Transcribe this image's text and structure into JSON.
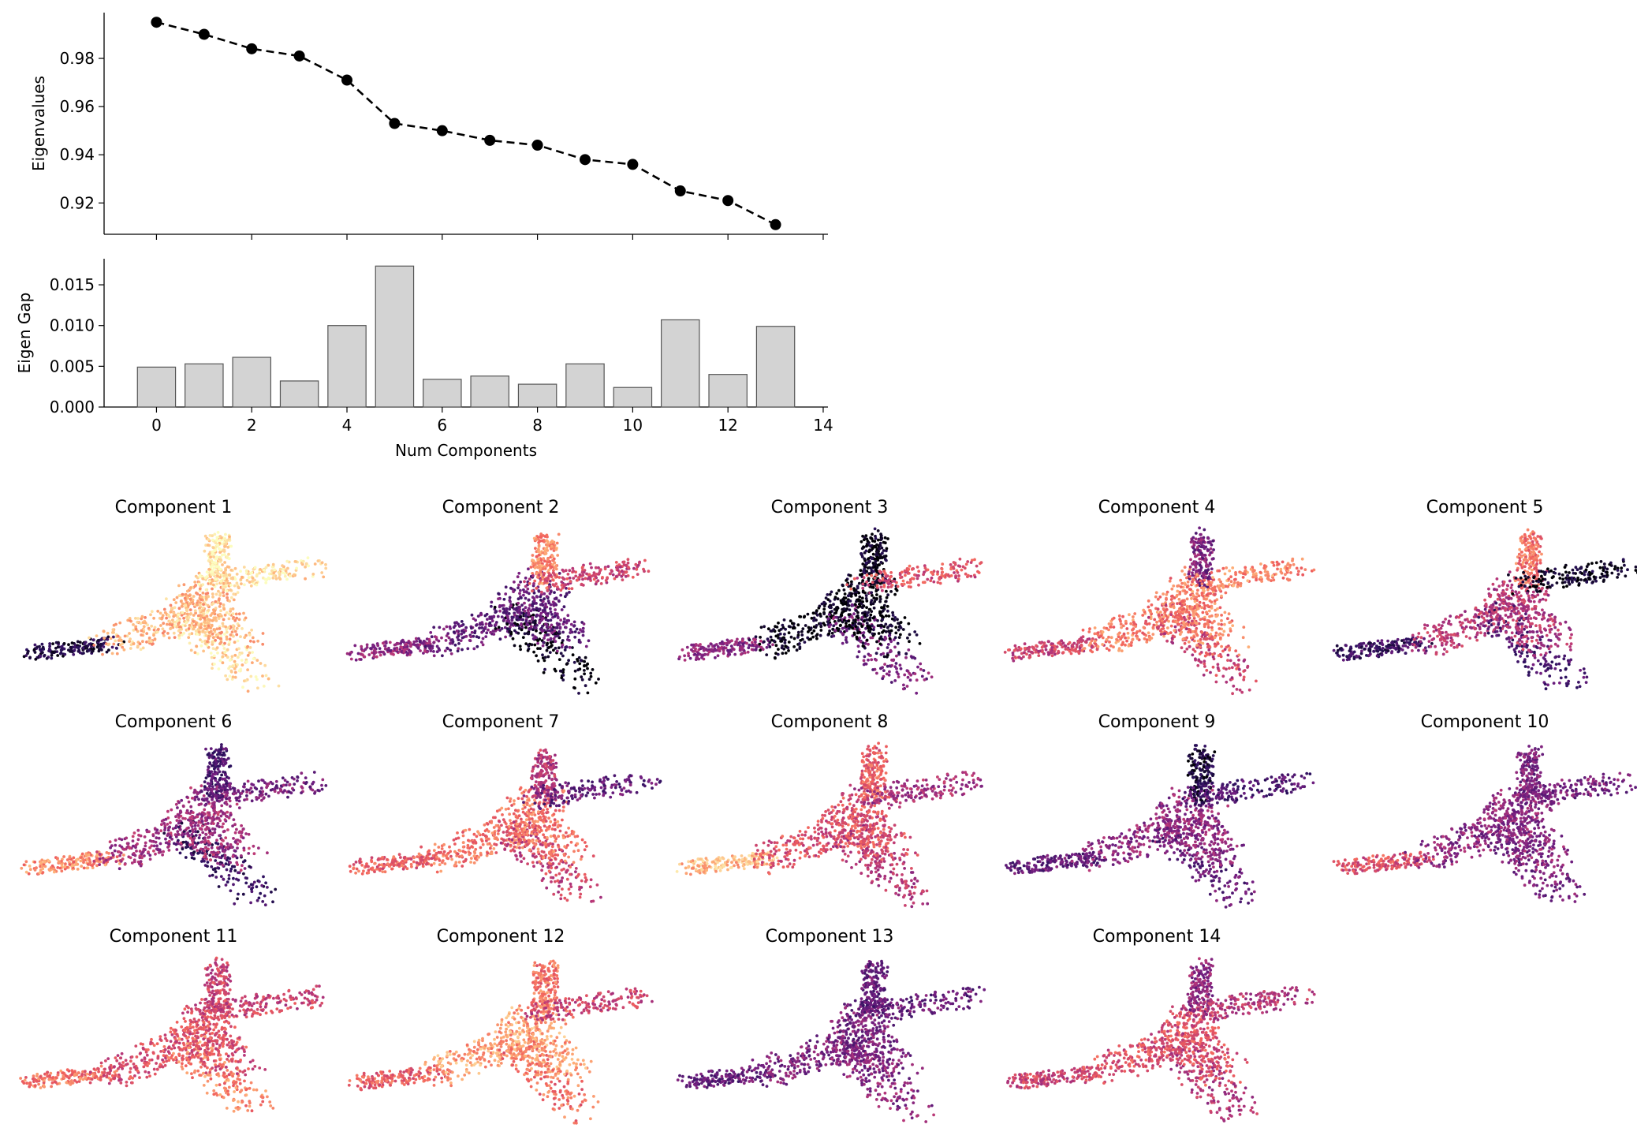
{
  "colors": {
    "line": "#000000",
    "bar_fill": "#d3d3d3",
    "bar_edge": "#555555",
    "colormap": [
      "#000004",
      "#2c115f",
      "#721f81",
      "#b73779",
      "#f1605d",
      "#feb078",
      "#fcfdbf"
    ]
  },
  "chart_data": [
    {
      "type": "line",
      "ylabel": "Eigenvalues",
      "xlabel": "",
      "x": [
        0,
        1,
        2,
        3,
        4,
        5,
        6,
        7,
        8,
        9,
        10,
        11,
        12,
        13
      ],
      "series": [
        {
          "values": [
            0.995,
            0.99,
            0.984,
            0.981,
            0.971,
            0.953,
            0.95,
            0.946,
            0.944,
            0.938,
            0.936,
            0.925,
            0.921,
            0.911
          ]
        }
      ],
      "line_style": "dashed",
      "marker": "circle",
      "yticks": [
        "0.92",
        "0.94",
        "0.96",
        "0.98"
      ],
      "ylim": [
        0.907,
        0.999
      ],
      "xlim": [
        -1.1,
        14.1
      ],
      "grid": false
    },
    {
      "type": "bar",
      "ylabel": "Eigen Gap",
      "xlabel": "Num Components",
      "x": [
        0,
        1,
        2,
        3,
        4,
        5,
        6,
        7,
        8,
        9,
        10,
        11,
        12,
        13
      ],
      "values": [
        0.0049,
        0.0053,
        0.0061,
        0.0032,
        0.01,
        0.0173,
        0.0034,
        0.0038,
        0.0028,
        0.0053,
        0.0024,
        0.0107,
        0.004,
        0.0099
      ],
      "xticks": [
        "0",
        "2",
        "4",
        "6",
        "8",
        "10",
        "12",
        "14"
      ],
      "yticks": [
        "0.000",
        "0.005",
        "0.010",
        "0.015"
      ],
      "ylim": [
        0,
        0.0182
      ],
      "xlim": [
        -1.1,
        14.1
      ],
      "grid": false
    },
    {
      "type": "scatter",
      "colormap": "magma",
      "panels": [
        {
          "title": "Component 1",
          "color_by_region": {
            "left_tail": 0.12,
            "center": 0.85,
            "top_arm": 0.95,
            "right_arm": 0.93,
            "bottom_arm": 0.92
          }
        },
        {
          "title": "Component 2",
          "color_by_region": {
            "left_tail": 0.4,
            "center": 0.3,
            "top_arm": 0.75,
            "right_arm": 0.55,
            "bottom_arm": 0.02
          }
        },
        {
          "title": "Component 3",
          "color_by_region": {
            "left_tail": 0.4,
            "center": 0.03,
            "top_arm": 0.05,
            "right_arm": 0.6,
            "bottom_arm": 0.35
          }
        },
        {
          "title": "Component 4",
          "color_by_region": {
            "left_tail": 0.55,
            "center": 0.72,
            "top_arm": 0.35,
            "right_arm": 0.75,
            "bottom_arm": 0.55
          }
        },
        {
          "title": "Component 5",
          "color_by_region": {
            "left_tail": 0.2,
            "center": 0.5,
            "top_arm": 0.7,
            "right_arm": 0.05,
            "bottom_arm": 0.25
          }
        },
        {
          "title": "Component 6",
          "color_by_region": {
            "left_tail": 0.75,
            "center": 0.45,
            "top_arm": 0.25,
            "right_arm": 0.35,
            "bottom_arm": 0.2
          }
        },
        {
          "title": "Component 7",
          "color_by_region": {
            "left_tail": 0.65,
            "center": 0.7,
            "top_arm": 0.5,
            "right_arm": 0.3,
            "bottom_arm": 0.55
          }
        },
        {
          "title": "Component 8",
          "color_by_region": {
            "left_tail": 0.85,
            "center": 0.6,
            "top_arm": 0.65,
            "right_arm": 0.45,
            "bottom_arm": 0.5
          }
        },
        {
          "title": "Component 9",
          "color_by_region": {
            "left_tail": 0.3,
            "center": 0.4,
            "top_arm": 0.1,
            "right_arm": 0.25,
            "bottom_arm": 0.3
          }
        },
        {
          "title": "Component 10",
          "color_by_region": {
            "left_tail": 0.6,
            "center": 0.4,
            "top_arm": 0.35,
            "right_arm": 0.35,
            "bottom_arm": 0.35
          }
        },
        {
          "title": "Component 11",
          "color_by_region": {
            "left_tail": 0.7,
            "center": 0.6,
            "top_arm": 0.55,
            "right_arm": 0.55,
            "bottom_arm": 0.75
          }
        },
        {
          "title": "Component 12",
          "color_by_region": {
            "left_tail": 0.65,
            "center": 0.8,
            "top_arm": 0.7,
            "right_arm": 0.55,
            "bottom_arm": 0.7
          }
        },
        {
          "title": "Component 13",
          "color_by_region": {
            "left_tail": 0.3,
            "center": 0.35,
            "top_arm": 0.3,
            "right_arm": 0.3,
            "bottom_arm": 0.4
          }
        },
        {
          "title": "Component 14",
          "color_by_region": {
            "left_tail": 0.55,
            "center": 0.6,
            "top_arm": 0.4,
            "right_arm": 0.5,
            "bottom_arm": 0.5
          }
        }
      ]
    }
  ]
}
